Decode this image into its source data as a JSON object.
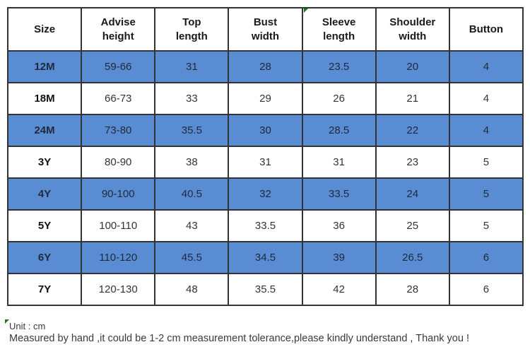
{
  "table": {
    "columns": [
      "Size",
      "Advise\nheight",
      "Top\nlength",
      "Bust\nwidth",
      "Sleeve\nlength",
      "Shoulder\nwidth",
      "Button"
    ],
    "rows": [
      {
        "size": "12M",
        "values": [
          "59-66",
          "31",
          "28",
          "23.5",
          "20",
          "4"
        ]
      },
      {
        "size": "18M",
        "values": [
          "66-73",
          "33",
          "29",
          "26",
          "21",
          "4"
        ]
      },
      {
        "size": "24M",
        "values": [
          "73-80",
          "35.5",
          "30",
          "28.5",
          "22",
          "4"
        ]
      },
      {
        "size": "3Y",
        "values": [
          "80-90",
          "38",
          "31",
          "31",
          "23",
          "5"
        ]
      },
      {
        "size": "4Y",
        "values": [
          "90-100",
          "40.5",
          "32",
          "33.5",
          "24",
          "5"
        ]
      },
      {
        "size": "5Y",
        "values": [
          "100-110",
          "43",
          "33.5",
          "36",
          "25",
          "5"
        ]
      },
      {
        "size": "6Y",
        "values": [
          "110-120",
          "45.5",
          "34.5",
          "39",
          "26.5",
          "6"
        ]
      },
      {
        "size": "7Y",
        "values": [
          "120-130",
          "48",
          "35.5",
          "42",
          "28",
          "6"
        ]
      }
    ]
  },
  "chart_data": {
    "type": "table",
    "columns": [
      "Size",
      "Advise height",
      "Top length",
      "Bust width",
      "Sleeve length",
      "Shoulder width",
      "Button"
    ],
    "rows": [
      [
        "12M",
        "59-66",
        31,
        28,
        23.5,
        20,
        4
      ],
      [
        "18M",
        "66-73",
        33,
        29,
        26,
        21,
        4
      ],
      [
        "24M",
        "73-80",
        35.5,
        30,
        28.5,
        22,
        4
      ],
      [
        "3Y",
        "80-90",
        38,
        31,
        31,
        23,
        5
      ],
      [
        "4Y",
        "90-100",
        40.5,
        32,
        33.5,
        24,
        5
      ],
      [
        "5Y",
        "100-110",
        43,
        33.5,
        36,
        25,
        5
      ],
      [
        "6Y",
        "110-120",
        45.5,
        34.5,
        39,
        26.5,
        6
      ],
      [
        "7Y",
        "120-130",
        48,
        35.5,
        42,
        28,
        6
      ]
    ]
  },
  "footer": {
    "unit": "Unit : cm",
    "note": "Measured by hand ,it could be 1-2 cm measurement tolerance,please kindly understand , Thank you !"
  },
  "colors": {
    "row_highlight": "#5a8cd4",
    "border": "#333333",
    "marker_green": "#1c7a1c",
    "background": "#ffffff"
  }
}
